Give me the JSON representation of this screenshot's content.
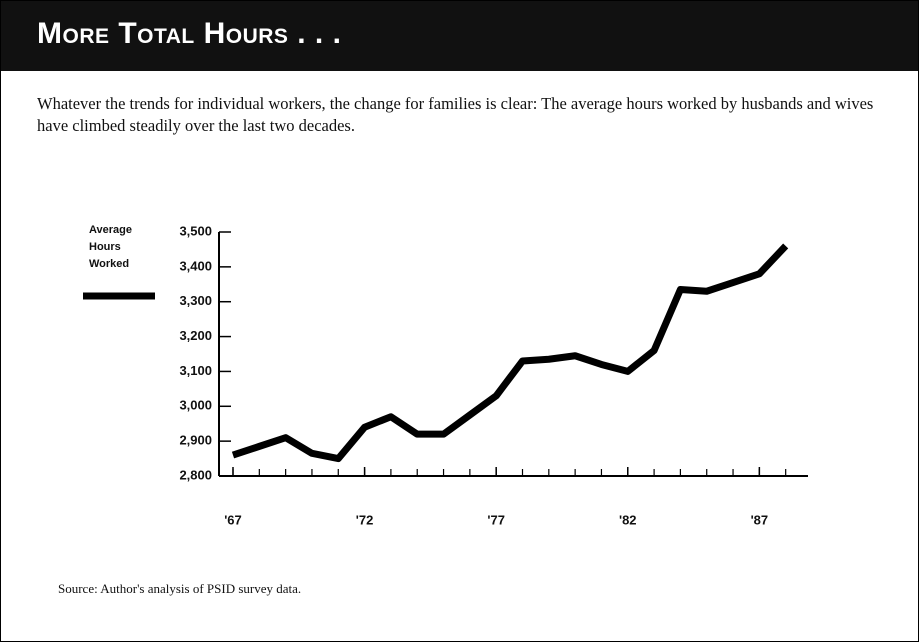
{
  "chart_data": {
    "type": "line",
    "title": "More Total Hours . . .",
    "subtitle": "Whatever the trends for individual workers, the change for families is clear: The average hours worked by husbands and wives have climbed steadily over the last two decades.",
    "y_label_lines": [
      "Average",
      "Hours",
      "Worked"
    ],
    "source": "Source: Author's analysis of PSID survey data.",
    "x": [
      1967,
      1968,
      1969,
      1970,
      1971,
      1972,
      1973,
      1974,
      1975,
      1976,
      1977,
      1978,
      1979,
      1980,
      1981,
      1982,
      1983,
      1984,
      1985,
      1986,
      1987,
      1988
    ],
    "series": [
      {
        "name": "Average Hours Worked",
        "color": "#000000",
        "values": [
          2860,
          2885,
          2910,
          2865,
          2850,
          2940,
          2970,
          2920,
          2920,
          2975,
          3030,
          3130,
          3135,
          3145,
          3120,
          3100,
          3160,
          3335,
          3330,
          3355,
          3380,
          3460
        ]
      }
    ],
    "xlim": [
      1967,
      1989
    ],
    "xticks": [
      {
        "value": 1967,
        "label": "'67"
      },
      {
        "value": 1972,
        "label": "'72"
      },
      {
        "value": 1977,
        "label": "'77"
      },
      {
        "value": 1982,
        "label": "'82"
      },
      {
        "value": 1987,
        "label": "'87"
      }
    ],
    "ylim": [
      2800,
      3500
    ],
    "yticks": [
      {
        "value": 2800,
        "label": "2,800"
      },
      {
        "value": 2900,
        "label": "2,900"
      },
      {
        "value": 3000,
        "label": "3,000"
      },
      {
        "value": 3100,
        "label": "3,100"
      },
      {
        "value": 3200,
        "label": "3,200"
      },
      {
        "value": 3300,
        "label": "3,300"
      },
      {
        "value": 3400,
        "label": "3,400"
      },
      {
        "value": 3500,
        "label": "3,500"
      }
    ]
  }
}
